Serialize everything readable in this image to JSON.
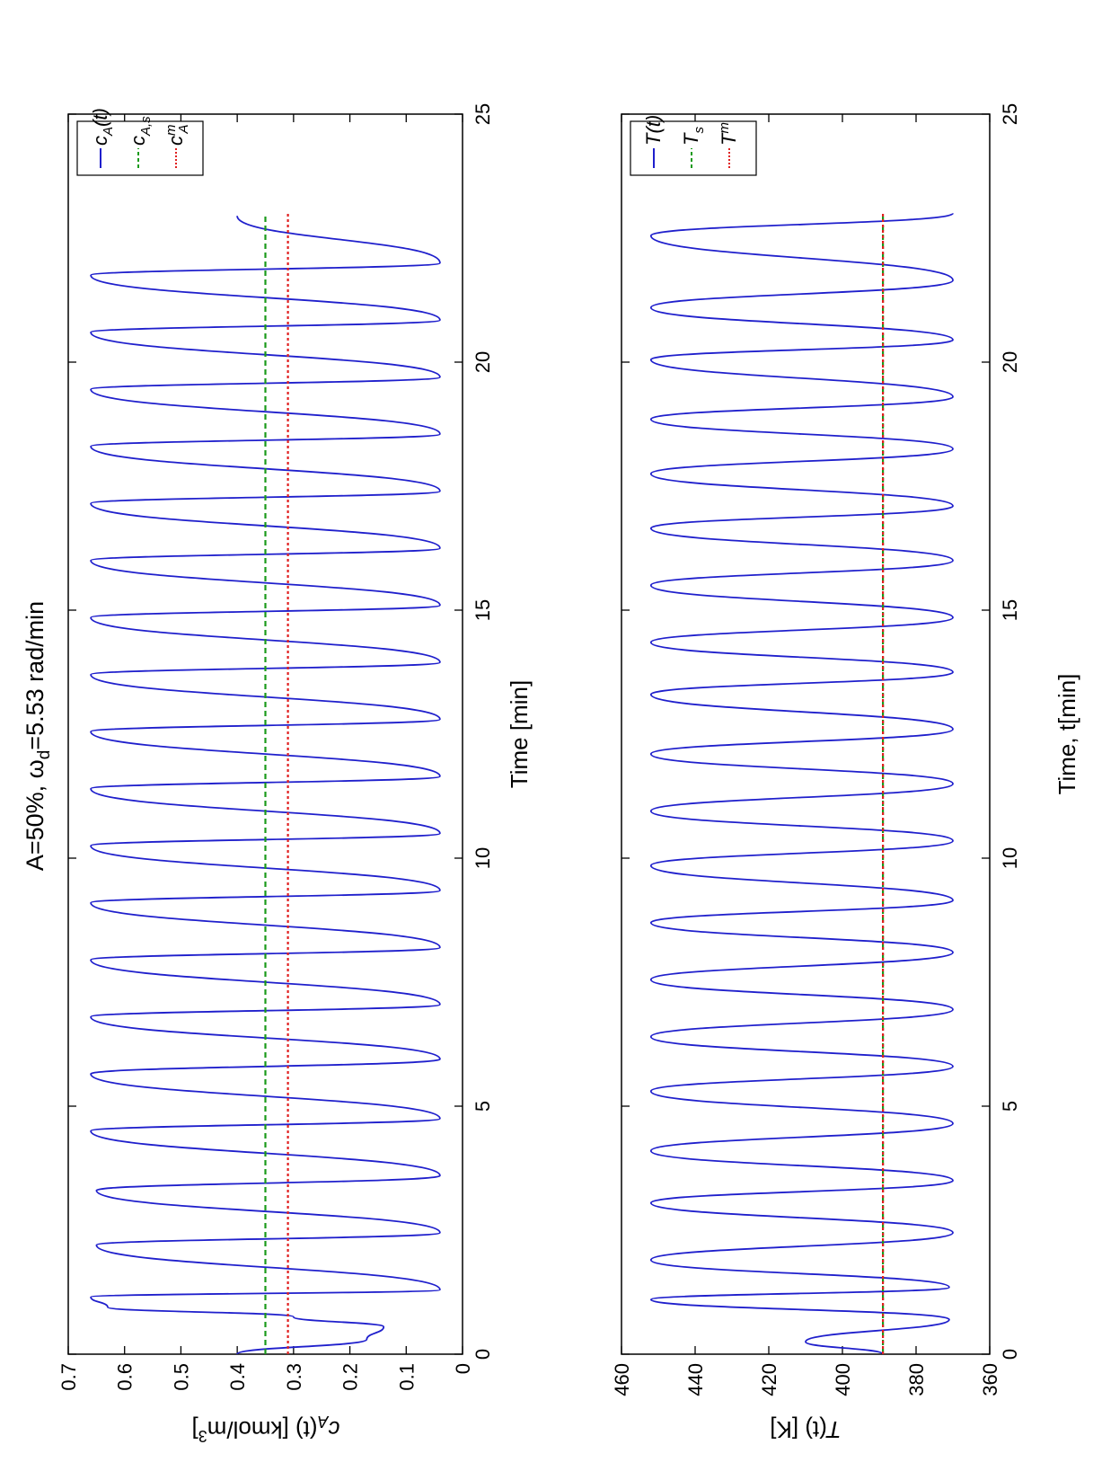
{
  "figure": {
    "title": "A=50%, ω_d=5.53 rad/min",
    "title_main": "A=50%, ω",
    "title_sub": "d",
    "title_rest": "=5.53 rad/min"
  },
  "chart_data": [
    {
      "type": "line",
      "title": "A=50%, ω_d=5.53 rad/min",
      "xlabel": "Time [min]",
      "ylabel": "c_A(t)  [kmol/m^3]",
      "xlim": [
        0,
        25
      ],
      "ylim": [
        0,
        0.7
      ],
      "xticks": [
        0,
        5,
        10,
        15,
        20,
        25
      ],
      "yticks": [
        0,
        0.1,
        0.2,
        0.3,
        0.4,
        0.5,
        0.6,
        0.7
      ],
      "ytick_labels": [
        "0",
        "0.1",
        "0.2",
        "0.3",
        "0.4",
        "0.5",
        "0.6",
        "0.7"
      ],
      "grid": false,
      "legend_position": "top-right",
      "series": [
        {
          "name": "c_A(t)",
          "style": "solid",
          "color": "#1f1fcc",
          "x": [
            0.0,
            0.3,
            0.55,
            0.75,
            0.95,
            1.15,
            1.3,
            2.2,
            2.45,
            3.3,
            3.6,
            4.5,
            4.75,
            5.65,
            5.95,
            6.8,
            7.05,
            7.95,
            8.2,
            9.1,
            9.35,
            10.25,
            10.5,
            11.4,
            11.65,
            12.55,
            12.8,
            13.7,
            13.95,
            14.85,
            15.1,
            16.0,
            16.25,
            17.15,
            17.4,
            18.3,
            18.55,
            19.45,
            19.7,
            20.6,
            20.85,
            21.75,
            22.0,
            22.95
          ],
          "y": [
            0.4,
            0.17,
            0.14,
            0.3,
            0.63,
            0.66,
            0.04,
            0.65,
            0.04,
            0.65,
            0.04,
            0.66,
            0.04,
            0.66,
            0.04,
            0.66,
            0.04,
            0.66,
            0.04,
            0.66,
            0.04,
            0.66,
            0.04,
            0.66,
            0.04,
            0.66,
            0.04,
            0.66,
            0.04,
            0.66,
            0.04,
            0.66,
            0.04,
            0.66,
            0.04,
            0.66,
            0.04,
            0.66,
            0.04,
            0.66,
            0.04,
            0.66,
            0.04,
            0.4
          ]
        },
        {
          "name": "c_A,s",
          "style": "dashed",
          "color": "#1a9a1a",
          "x": [
            0,
            23
          ],
          "y": [
            0.35,
            0.35
          ]
        },
        {
          "name": "c_A^m",
          "style": "dotted",
          "color": "#e02020",
          "x": [
            0,
            23
          ],
          "y": [
            0.31,
            0.31
          ]
        }
      ],
      "legend": [
        {
          "label_main": "c",
          "label_sub": "A",
          "label_sup": "",
          "label_tail": "(t)"
        },
        {
          "label_main": "c",
          "label_sub": "A,s",
          "label_sup": "",
          "label_tail": ""
        },
        {
          "label_main": "c",
          "label_sub": "A",
          "label_sup": "m",
          "label_tail": ""
        }
      ],
      "ylabel_main": "c",
      "ylabel_sub": "A",
      "ylabel_mid": "(t)  [kmol/m",
      "ylabel_sup": "3",
      "ylabel_end": "]"
    },
    {
      "type": "line",
      "xlabel": "Time, t[min]",
      "ylabel": "T(t) [K]",
      "xlim": [
        0,
        25
      ],
      "ylim": [
        360,
        460
      ],
      "xticks": [
        0,
        5,
        10,
        15,
        20,
        25
      ],
      "yticks": [
        360,
        380,
        400,
        420,
        440,
        460
      ],
      "ytick_labels": [
        "360",
        "380",
        "400",
        "420",
        "440",
        "460"
      ],
      "grid": false,
      "legend_position": "top-right",
      "series": [
        {
          "name": "T(t)",
          "style": "solid",
          "color": "#1f1fcc",
          "x": [
            0.0,
            0.25,
            0.7,
            1.1,
            1.35,
            1.9,
            2.45,
            3.05,
            3.5,
            4.1,
            4.65,
            5.3,
            5.8,
            6.4,
            6.95,
            7.55,
            8.1,
            8.7,
            9.15,
            9.85,
            10.35,
            10.95,
            11.5,
            12.1,
            12.6,
            13.3,
            13.75,
            14.35,
            14.85,
            15.5,
            16.0,
            16.65,
            17.1,
            17.75,
            18.25,
            18.85,
            19.3,
            20.05,
            20.45,
            21.1,
            21.65,
            22.55,
            23.0
          ],
          "y": [
            389,
            410,
            371,
            452,
            371,
            452,
            370,
            452,
            370,
            452,
            370,
            452,
            370,
            452,
            370,
            452,
            370,
            452,
            370,
            452,
            370,
            452,
            370,
            452,
            370,
            452,
            370,
            452,
            370,
            452,
            370,
            452,
            370,
            452,
            370,
            452,
            370,
            452,
            370,
            452,
            370,
            452,
            370
          ]
        },
        {
          "name": "T_s",
          "style": "dashed",
          "color": "#1a9a1a",
          "x": [
            0,
            23
          ],
          "y": [
            389,
            389
          ]
        },
        {
          "name": "T^m",
          "style": "dotted",
          "color": "#e02020",
          "x": [
            0,
            23
          ],
          "y": [
            389,
            389
          ]
        }
      ],
      "legend": [
        {
          "label_main": "T",
          "label_sub": "",
          "label_sup": "",
          "label_tail": "(t)"
        },
        {
          "label_main": "T",
          "label_sub": "s",
          "label_sup": "",
          "label_tail": ""
        },
        {
          "label_main": "T",
          "label_sub": "",
          "label_sup": "m",
          "label_tail": ""
        }
      ],
      "ylabel_main": "T",
      "ylabel_sub": "",
      "ylabel_mid": "(t) [K]",
      "ylabel_sup": "",
      "ylabel_end": ""
    }
  ]
}
